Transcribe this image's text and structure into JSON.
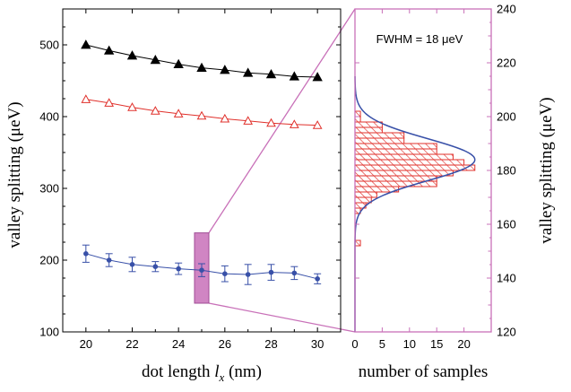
{
  "chart_data": [
    {
      "type": "line",
      "xlabel_main": "dot length ",
      "xlabel_var": "l",
      "xlabel_sub": "x",
      "xlabel_unit": " (nm)",
      "ylabel": "valley splitting (μeV)",
      "xlim": [
        19,
        31
      ],
      "ylim": [
        100,
        550
      ],
      "xticks": [
        20,
        22,
        24,
        26,
        28,
        30
      ],
      "yticks": [
        100,
        200,
        300,
        400,
        500
      ],
      "x": [
        20,
        21,
        22,
        23,
        24,
        25,
        26,
        27,
        28,
        29,
        30
      ],
      "series": [
        {
          "marker": "filled-triangle",
          "color": "#000000",
          "values": [
            500,
            492,
            485,
            479,
            473,
            468,
            465,
            461,
            459,
            456,
            455
          ]
        },
        {
          "marker": "open-triangle",
          "color": "#e0302b",
          "values": [
            424,
            419,
            413,
            408,
            404,
            401,
            397,
            394,
            391,
            389,
            388
          ]
        },
        {
          "marker": "dot-errorbar",
          "color": "#3850a8",
          "values": [
            209,
            200,
            194,
            191,
            188,
            186,
            181,
            180,
            183,
            182,
            174
          ],
          "errors": [
            12,
            9,
            10,
            7,
            8,
            9,
            11,
            14,
            11,
            9,
            7
          ]
        }
      ],
      "highlight": {
        "x": 25,
        "y_range": [
          140,
          238
        ],
        "color": "#c870b8"
      }
    },
    {
      "type": "bar",
      "orientation": "horizontal",
      "xlabel": "number of samples",
      "ylabel": "valley splitting (μeV)",
      "xlim": [
        0,
        25
      ],
      "ylim": [
        120,
        240
      ],
      "xticks": [
        0,
        5,
        10,
        15,
        20
      ],
      "yticks": [
        120,
        140,
        160,
        180,
        200,
        220,
        240
      ],
      "bin_edges": [
        152,
        154,
        156,
        158,
        160,
        162,
        164,
        166,
        168,
        170,
        172,
        174,
        176,
        178,
        180,
        182,
        184,
        186,
        188,
        190,
        192,
        194,
        196,
        198,
        200,
        202,
        204,
        206,
        208
      ],
      "counts": [
        1,
        0,
        0,
        0,
        0,
        0,
        1,
        2,
        3,
        4,
        8,
        15,
        15,
        18,
        22,
        20,
        18,
        15,
        15,
        9,
        9,
        5,
        5,
        1,
        1,
        0,
        0,
        0
      ],
      "fit": {
        "type": "gaussian",
        "mean": 184,
        "fwhm_display": 18,
        "amplitude": 22
      },
      "annotation": "FWHM = 18 μeV",
      "hatch_color": "#e0302b",
      "fit_color": "#3850a8",
      "frame_color": "#c870b8"
    }
  ]
}
